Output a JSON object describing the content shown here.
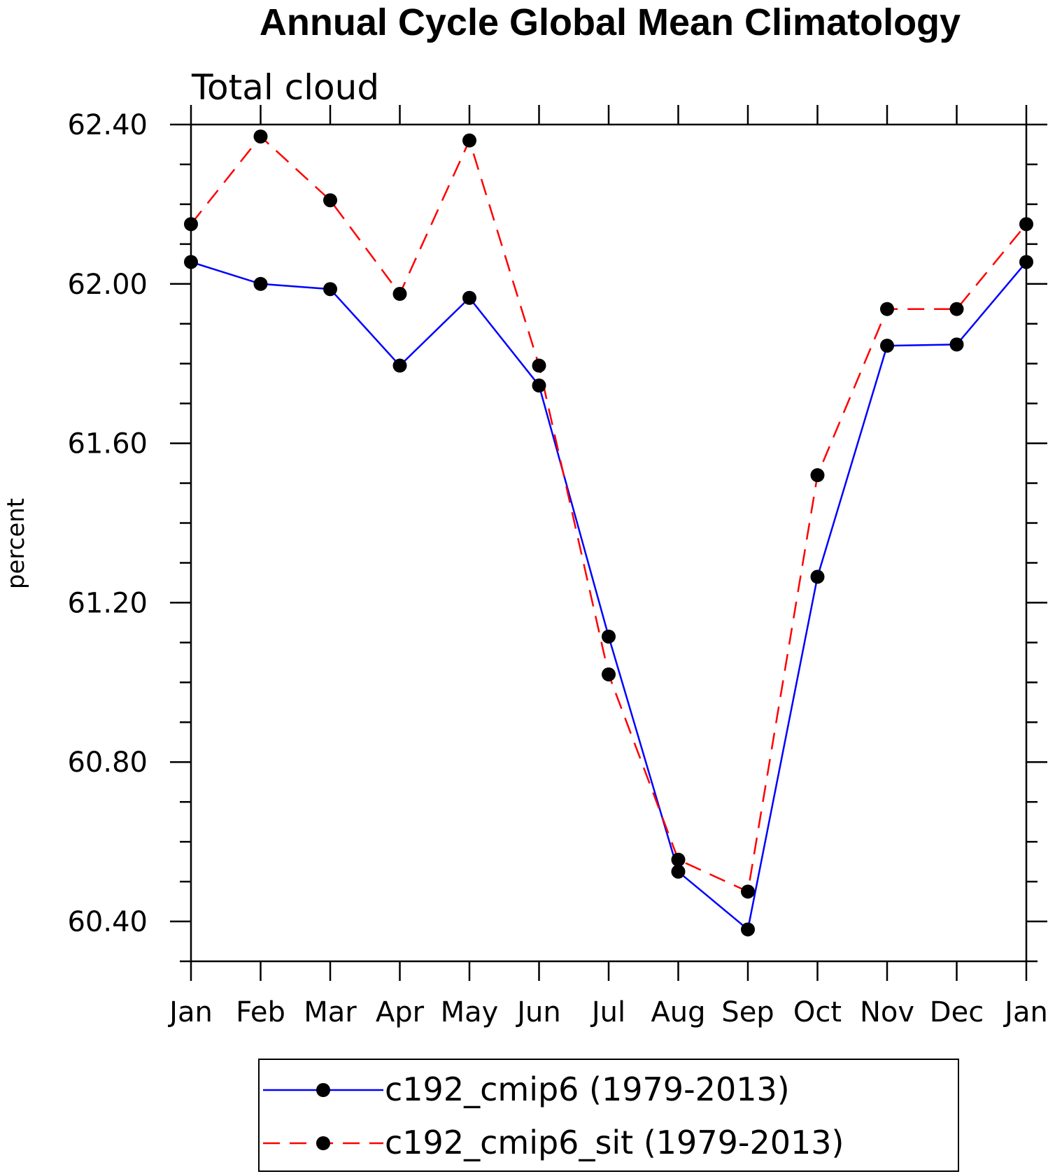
{
  "chart_data": {
    "type": "line",
    "title": "Annual Cycle Global Mean Climatology",
    "subtitle": "Total cloud",
    "ylabel": "percent",
    "xlabel": "",
    "categories": [
      "Jan",
      "Feb",
      "Mar",
      "Apr",
      "May",
      "Jun",
      "Jul",
      "Aug",
      "Sep",
      "Oct",
      "Nov",
      "Dec",
      "Jan"
    ],
    "ylim": [
      60.3,
      62.4
    ],
    "yticks": [
      "60.40",
      "60.80",
      "61.20",
      "61.60",
      "62.00",
      "62.40"
    ],
    "grid": false,
    "legend_position": "bottom",
    "series": [
      {
        "name": "c192_cmip6 (1979-2013)",
        "color": "#0000ff",
        "dash": "solid",
        "marker": "filled-circle",
        "values": [
          62.055,
          62.0,
          61.987,
          61.795,
          61.965,
          61.745,
          61.115,
          60.525,
          60.38,
          61.265,
          61.845,
          61.848,
          62.055
        ]
      },
      {
        "name": "c192_cmip6_sit (1979-2013)",
        "color": "#ff0000",
        "dash": "dashed",
        "marker": "filled-circle",
        "values": [
          62.15,
          62.37,
          62.21,
          61.975,
          62.36,
          61.795,
          61.02,
          60.555,
          60.475,
          61.52,
          61.937,
          61.937,
          62.15
        ]
      }
    ]
  }
}
